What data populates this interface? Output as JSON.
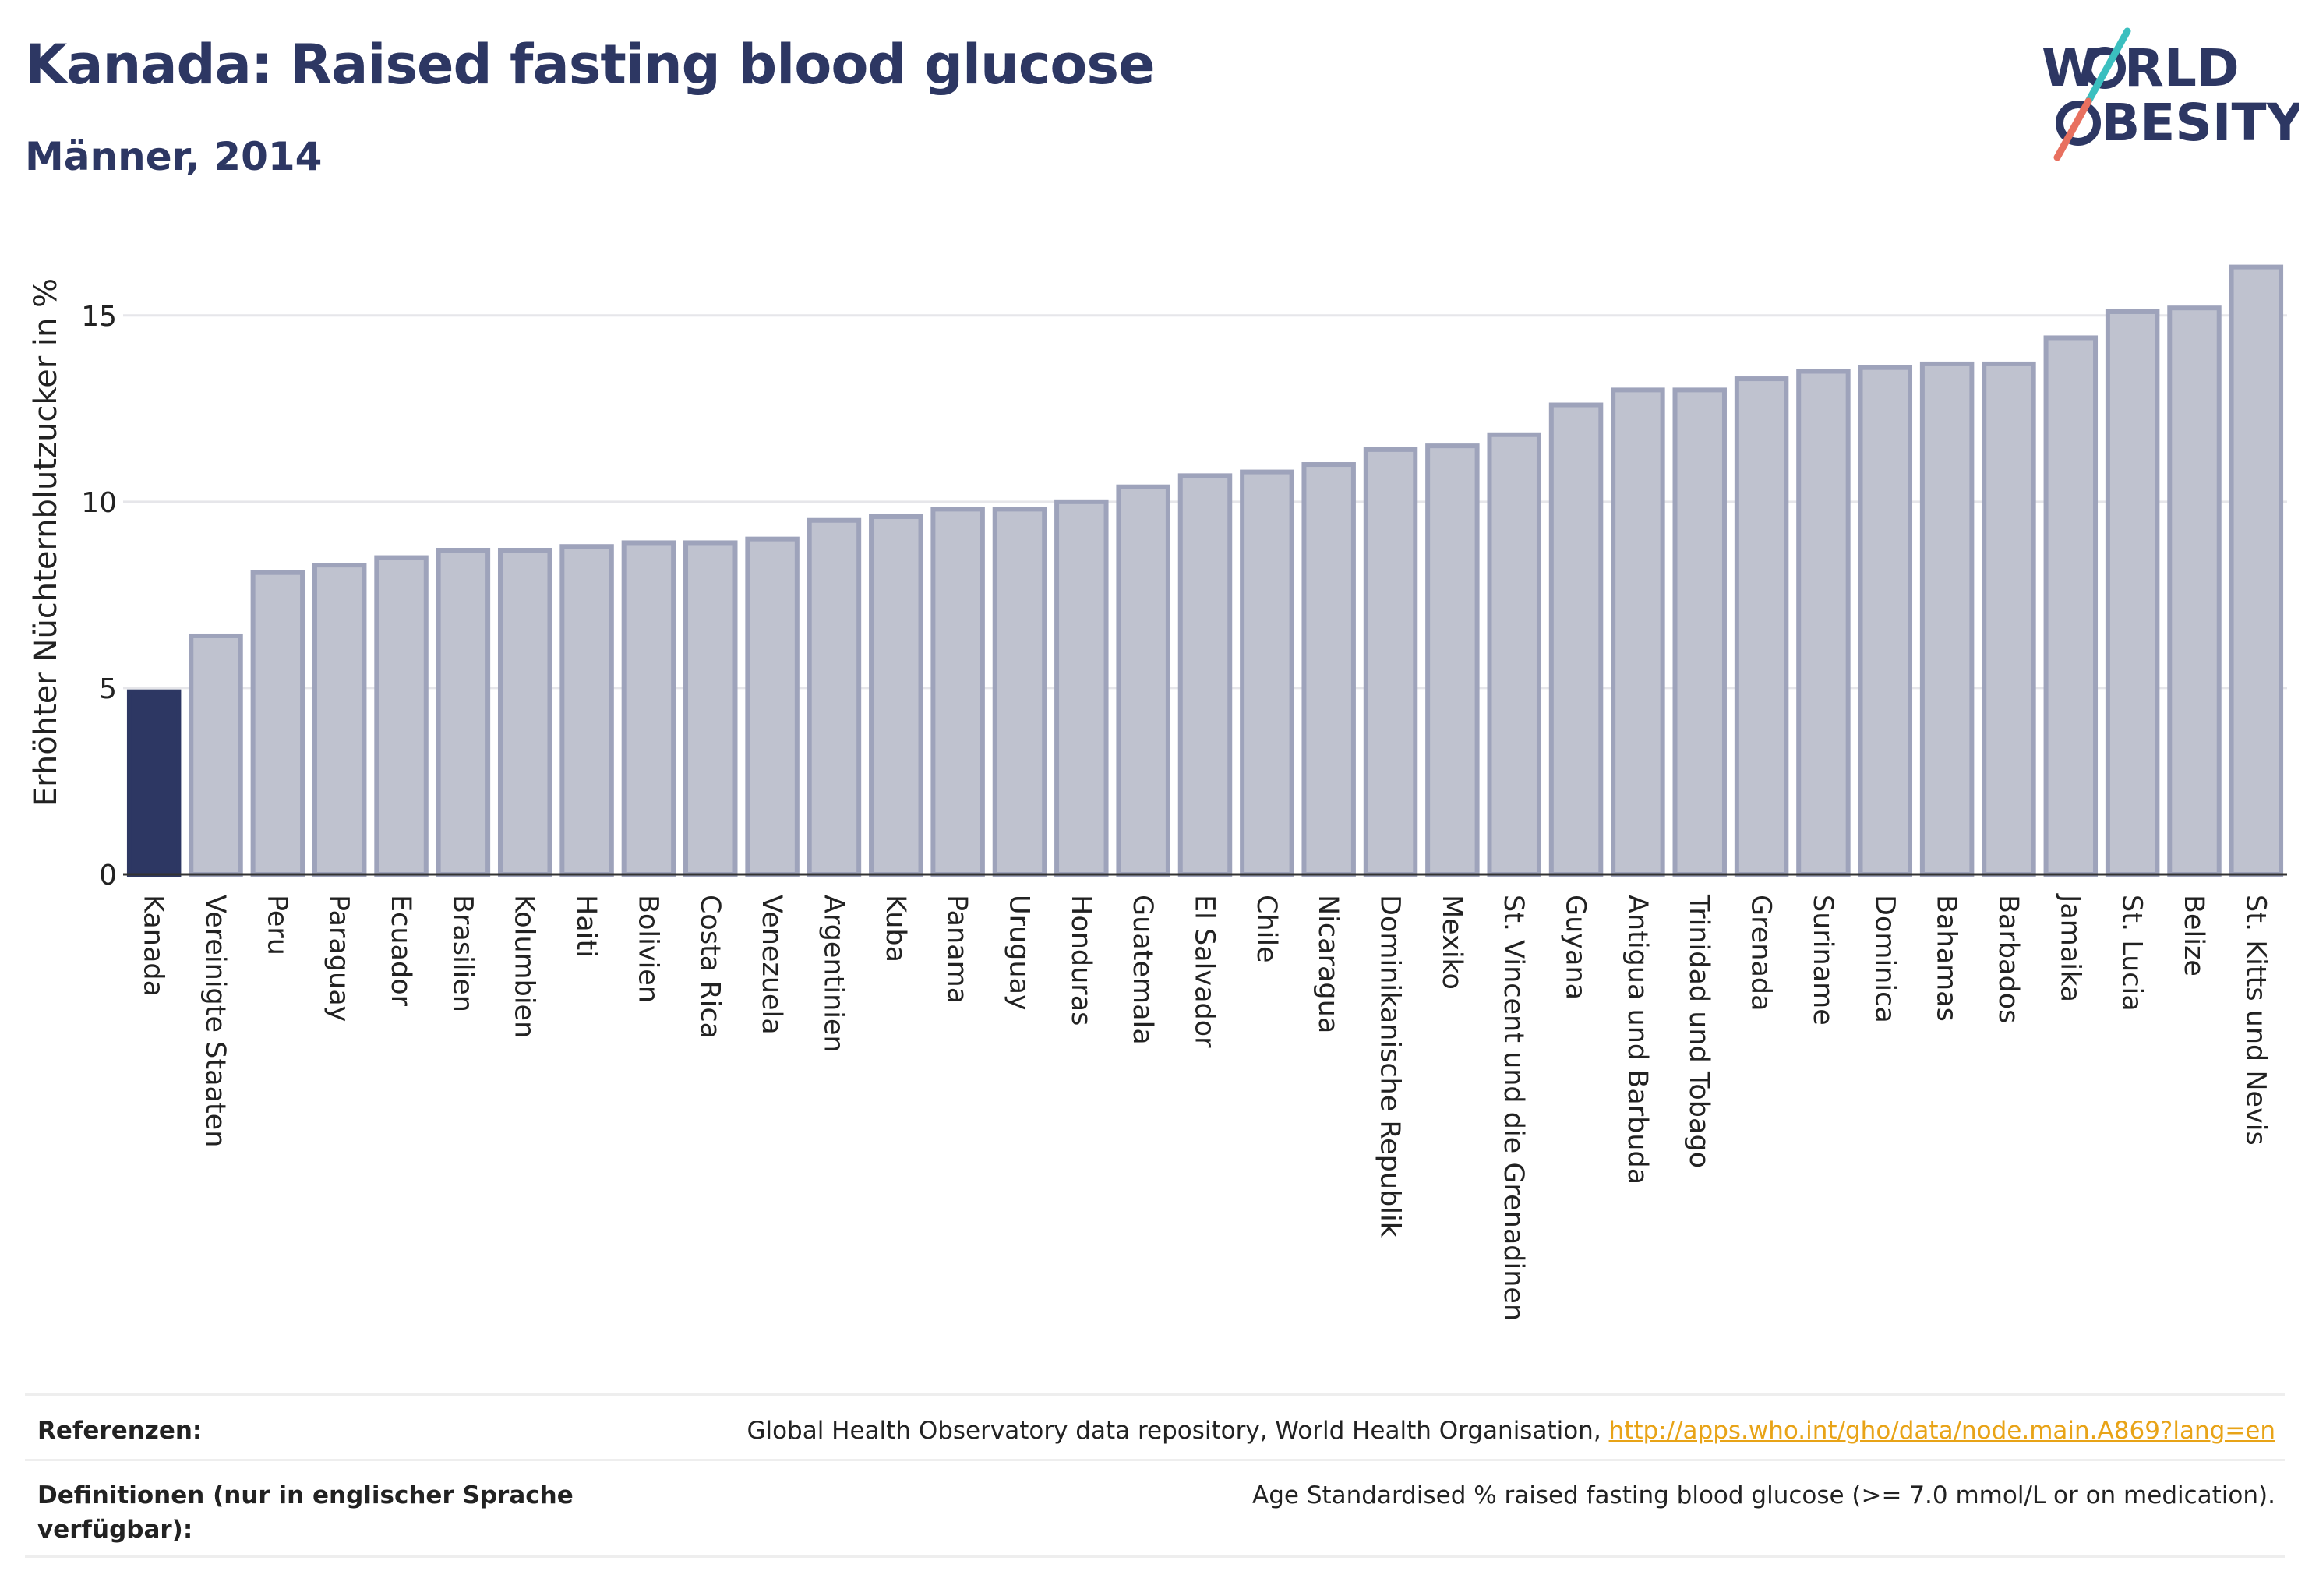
{
  "header": {
    "title": "Kanada: Raised fasting blood glucose",
    "subtitle": "Männer, 2014"
  },
  "logo": {
    "line1": "W",
    "line1_rest": "RLD",
    "line2_rest": "BESITY",
    "accent_teal": "#3bbfbf",
    "accent_coral": "#e8705f"
  },
  "colors": {
    "highlight_bar": "#2d3763",
    "other_bar_fill": "#bfc2cf",
    "other_bar_stroke": "#9ea3bb",
    "grid": "#e6e6ea",
    "axis_text": "#222222"
  },
  "chart_data": {
    "type": "bar",
    "ylabel": "Erhöhter Nüchternblutzucker in %",
    "ylim": [
      0,
      17.4
    ],
    "yticks": [
      0,
      5,
      10,
      15
    ],
    "grid": true,
    "highlight": "Kanada",
    "categories": [
      "Kanada",
      "Vereinigte Staaten",
      "Peru",
      "Paraguay",
      "Ecuador",
      "Brasilien",
      "Kolumbien",
      "Haiti",
      "Bolivien",
      "Costa Rica",
      "Venezuela",
      "Argentinien",
      "Kuba",
      "Panama",
      "Uruguay",
      "Honduras",
      "Guatemala",
      "El Salvador",
      "Chile",
      "Nicaragua",
      "Dominikanische Republik",
      "Mexiko",
      "St. Vincent und die Grenadinen",
      "Guyana",
      "Antigua und Barbuda",
      "Trinidad und Tobago",
      "Grenada",
      "Suriname",
      "Dominica",
      "Bahamas",
      "Barbados",
      "Jamaika",
      "St. Lucia",
      "Belize",
      "St. Kitts und Nevis"
    ],
    "values": [
      4.9,
      6.4,
      8.1,
      8.3,
      8.5,
      8.7,
      8.7,
      8.8,
      8.9,
      8.9,
      9.0,
      9.5,
      9.6,
      9.8,
      9.8,
      10.0,
      10.4,
      10.7,
      10.8,
      11.0,
      11.4,
      11.5,
      11.8,
      12.6,
      13.0,
      13.0,
      13.3,
      13.5,
      13.6,
      13.7,
      13.7,
      14.4,
      15.1,
      15.2,
      16.3
    ]
  },
  "footer": {
    "references_label": "Referenzen:",
    "references_text": "Global Health Observatory data repository, World Health Organisation, ",
    "references_link": "http://apps.who.int/gho/data/node.main.A869?lang=en",
    "definitions_label": "Definitionen (nur in englischer Sprache verfügbar):",
    "definitions_text": "Age Standardised % raised fasting blood glucose (>= 7.0 mmol/L or on medication)."
  }
}
